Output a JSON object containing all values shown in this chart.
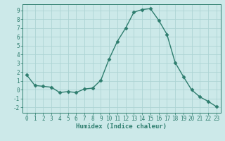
{
  "x": [
    0,
    1,
    2,
    3,
    4,
    5,
    6,
    7,
    8,
    9,
    10,
    11,
    12,
    13,
    14,
    15,
    16,
    17,
    18,
    19,
    20,
    21,
    22,
    23
  ],
  "y": [
    1.7,
    0.5,
    0.4,
    0.3,
    -0.3,
    -0.2,
    -0.3,
    0.1,
    0.2,
    1.1,
    3.5,
    5.5,
    7.0,
    8.8,
    9.1,
    9.2,
    7.9,
    6.3,
    3.1,
    1.5,
    0.0,
    -0.8,
    -1.3,
    -1.9
  ],
  "line_color": "#2e7d6e",
  "marker": "D",
  "markersize": 2.5,
  "linewidth": 1.0,
  "bg_color": "#cce9e9",
  "grid_color": "#add4d4",
  "xlabel": "Humidex (Indice chaleur)",
  "xlim": [
    -0.5,
    23.5
  ],
  "ylim": [
    -2.6,
    9.7
  ],
  "yticks": [
    -2,
    -1,
    0,
    1,
    2,
    3,
    4,
    5,
    6,
    7,
    8,
    9
  ],
  "xticks": [
    0,
    1,
    2,
    3,
    4,
    5,
    6,
    7,
    8,
    9,
    10,
    11,
    12,
    13,
    14,
    15,
    16,
    17,
    18,
    19,
    20,
    21,
    22,
    23
  ],
  "tick_labelsize": 5.5,
  "xlabel_fontsize": 6.5,
  "xlabel_fontweight": "bold"
}
